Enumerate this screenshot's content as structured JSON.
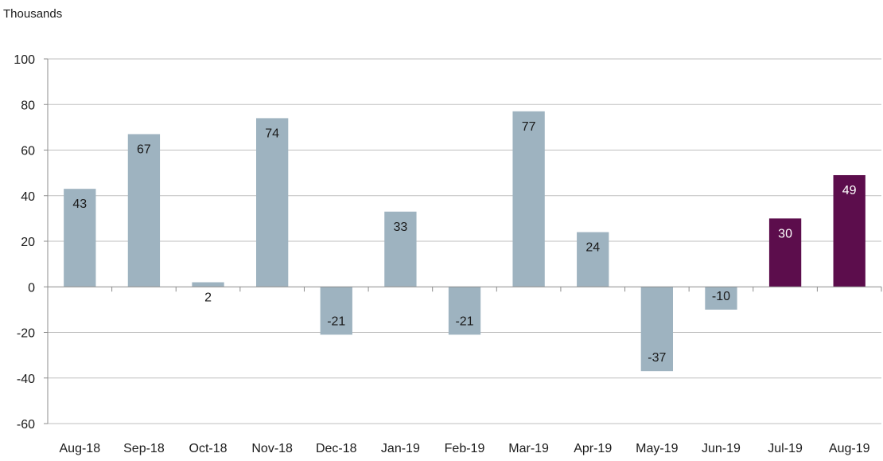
{
  "chart_data": {
    "type": "bar",
    "ylabel": "Thousands",
    "xlabel": "",
    "title": "",
    "categories": [
      "Aug-18",
      "Sep-18",
      "Oct-18",
      "Nov-18",
      "Dec-18",
      "Jan-19",
      "Feb-19",
      "Mar-19",
      "Apr-19",
      "May-19",
      "Jun-19",
      "Jul-19",
      "Aug-19"
    ],
    "values": [
      43,
      67,
      2,
      74,
      -21,
      33,
      -21,
      77,
      24,
      -37,
      -10,
      30,
      49
    ],
    "data_labels": [
      "43",
      "67",
      "2",
      "74",
      "-21",
      "33",
      "-21",
      "77",
      "24",
      "-37",
      "-10",
      "30",
      "49"
    ],
    "highlighted": [
      false,
      false,
      false,
      false,
      false,
      false,
      false,
      false,
      false,
      false,
      false,
      true,
      true
    ],
    "ylim": [
      -60,
      100
    ],
    "yticks": [
      -60,
      -40,
      -20,
      0,
      20,
      40,
      60,
      80,
      100
    ],
    "ytick_labels": [
      "-60",
      "-40",
      "-20",
      "0",
      "20",
      "40",
      "60",
      "80",
      "100"
    ],
    "grid": true,
    "legend": "none",
    "colors": {
      "default_bar": "#9eb3c0",
      "highlight_bar": "#5c0d4c",
      "label_on_default": "#1a1a1a",
      "label_on_highlight": "#ffffff"
    }
  }
}
